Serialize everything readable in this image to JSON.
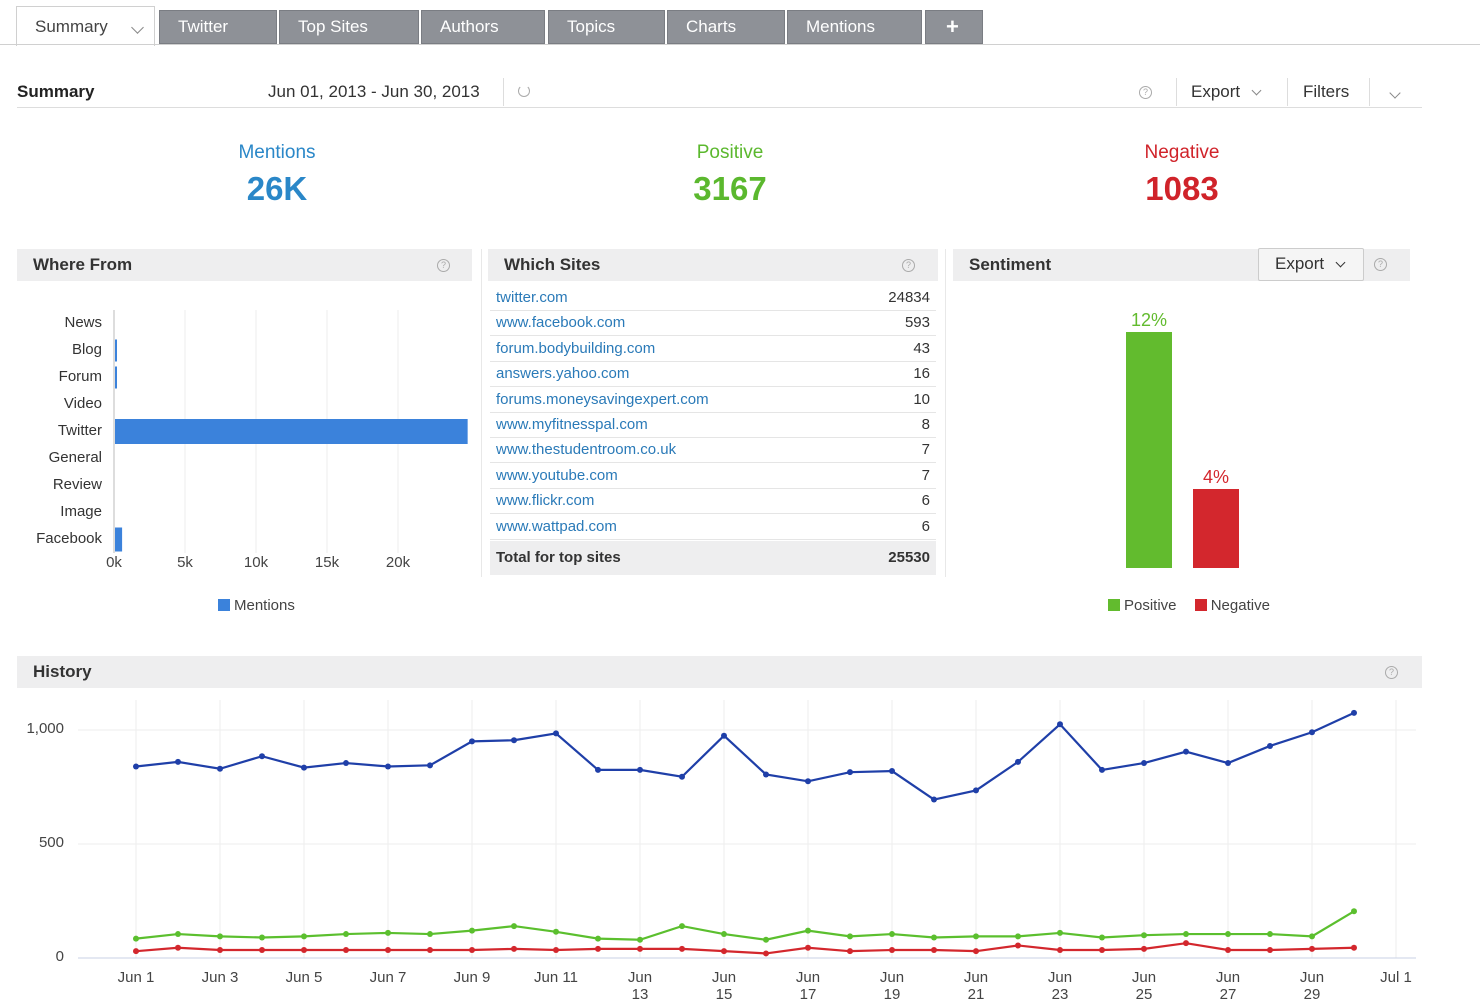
{
  "tabs": [
    {
      "label": "Summary",
      "active": true
    },
    {
      "label": "Twitter"
    },
    {
      "label": "Top Sites"
    },
    {
      "label": "Authors"
    },
    {
      "label": "Topics"
    },
    {
      "label": "Charts"
    },
    {
      "label": "Mentions"
    },
    {
      "label": "+"
    }
  ],
  "header": {
    "title": "Summary",
    "date_range": "Jun 01, 2013 - Jun 30, 2013",
    "export_label": "Export",
    "filters_label": "Filters"
  },
  "stats": {
    "mentions": {
      "label": "Mentions",
      "value": "26K",
      "color": "#2a87c8"
    },
    "positive": {
      "label": "Positive",
      "value": "3167",
      "color": "#5bb82e"
    },
    "negative": {
      "label": "Negative",
      "value": "1083",
      "color": "#d0232a"
    }
  },
  "where_from": {
    "title": "Where From",
    "legend": "Mentions",
    "chart_data": {
      "type": "bar",
      "orientation": "horizontal",
      "categories": [
        "News",
        "Blog",
        "Forum",
        "Video",
        "Twitter",
        "General",
        "Review",
        "Image",
        "Facebook"
      ],
      "values": [
        0,
        100,
        100,
        0,
        24834,
        0,
        0,
        0,
        500
      ],
      "xticks": [
        "0k",
        "5k",
        "10k",
        "15k",
        "20k"
      ],
      "xlim": [
        0,
        25000
      ],
      "color": "#3b82db"
    }
  },
  "which_sites": {
    "title": "Which Sites",
    "rows": [
      {
        "site": "twitter.com",
        "count": "24834"
      },
      {
        "site": "www.facebook.com",
        "count": "593"
      },
      {
        "site": "forum.bodybuilding.com",
        "count": "43"
      },
      {
        "site": "answers.yahoo.com",
        "count": "16"
      },
      {
        "site": "forums.moneysavingexpert.com",
        "count": "10"
      },
      {
        "site": "www.myfitnesspal.com",
        "count": "8"
      },
      {
        "site": "www.thestudentroom.co.uk",
        "count": "7"
      },
      {
        "site": "www.youtube.com",
        "count": "7"
      },
      {
        "site": "www.flickr.com",
        "count": "6"
      },
      {
        "site": "www.wattpad.com",
        "count": "6"
      }
    ],
    "total_label": "Total for top sites",
    "total_value": "25530"
  },
  "sentiment": {
    "title": "Sentiment",
    "export_label": "Export",
    "chart_data": {
      "type": "bar",
      "categories": [
        "Positive",
        "Negative"
      ],
      "values": [
        12,
        4
      ],
      "labels": [
        "12%",
        "4%"
      ],
      "colors": [
        "#62bb2e",
        "#d3272d"
      ],
      "legend": [
        "Positive",
        "Negative"
      ]
    }
  },
  "history": {
    "title": "History",
    "chart_data": {
      "type": "line",
      "x": [
        "Jun 1",
        "Jun 2",
        "Jun 3",
        "Jun 4",
        "Jun 5",
        "Jun 6",
        "Jun 7",
        "Jun 8",
        "Jun 9",
        "Jun 10",
        "Jun 11",
        "Jun 12",
        "Jun 13",
        "Jun 14",
        "Jun 15",
        "Jun 16",
        "Jun 17",
        "Jun 18",
        "Jun 19",
        "Jun 20",
        "Jun 21",
        "Jun 22",
        "Jun 23",
        "Jun 24",
        "Jun 25",
        "Jun 26",
        "Jun 27",
        "Jun 28",
        "Jun 29",
        "Jun 30"
      ],
      "xticks": [
        "Jun 1",
        "Jun 3",
        "Jun 5",
        "Jun 7",
        "Jun 9",
        "Jun 11",
        "Jun 13",
        "Jun 15",
        "Jun 17",
        "Jun 19",
        "Jun 21",
        "Jun 23",
        "Jun 25",
        "Jun 27",
        "Jun 29",
        "Jul 1"
      ],
      "yticks": [
        "0",
        "500",
        "1,000"
      ],
      "ylim": [
        0,
        1100
      ],
      "series": [
        {
          "color": "#1f3fa8",
          "values": [
            840,
            860,
            830,
            885,
            835,
            855,
            840,
            845,
            950,
            955,
            985,
            825,
            825,
            795,
            975,
            805,
            775,
            815,
            820,
            695,
            735,
            860,
            1025,
            825,
            855,
            905,
            855,
            930,
            990,
            1075
          ]
        },
        {
          "color": "#5bbf2e",
          "values": [
            85,
            105,
            95,
            90,
            95,
            105,
            110,
            105,
            120,
            140,
            115,
            85,
            80,
            140,
            105,
            80,
            120,
            95,
            105,
            90,
            95,
            95,
            110,
            90,
            100,
            105,
            105,
            105,
            95,
            205
          ]
        },
        {
          "color": "#d3272d",
          "values": [
            30,
            45,
            35,
            35,
            35,
            35,
            35,
            35,
            35,
            40,
            35,
            40,
            40,
            40,
            30,
            20,
            45,
            30,
            35,
            35,
            30,
            55,
            35,
            35,
            40,
            65,
            35,
            35,
            40,
            45
          ]
        }
      ]
    }
  }
}
